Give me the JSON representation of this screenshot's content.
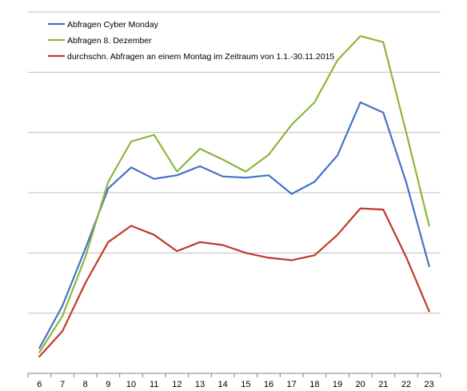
{
  "chart_data": {
    "type": "line",
    "title": "",
    "xlabel": "",
    "ylabel": "",
    "categories": [
      "6",
      "7",
      "8",
      "9",
      "10",
      "11",
      "12",
      "13",
      "14",
      "15",
      "16",
      "17",
      "18",
      "19",
      "20",
      "21",
      "22",
      "23"
    ],
    "ylim": [
      0,
      6
    ],
    "grid": true,
    "y_axis_labels": false,
    "legend_position": "top-left",
    "series": [
      {
        "name": "Abfragen Cyber Monday",
        "color": "#4472C4",
        "values": [
          0.42,
          1.12,
          2.07,
          3.07,
          3.42,
          3.23,
          3.29,
          3.44,
          3.27,
          3.25,
          3.29,
          2.98,
          3.18,
          3.62,
          4.5,
          4.33,
          3.17,
          1.78
        ]
      },
      {
        "name": "Abfragen 8. Dezember",
        "color": "#8EB53B",
        "values": [
          0.35,
          0.95,
          1.93,
          3.18,
          3.85,
          3.96,
          3.35,
          3.73,
          3.55,
          3.35,
          3.63,
          4.13,
          4.5,
          5.2,
          5.6,
          5.5,
          4.0,
          2.45
        ]
      },
      {
        "name": "durchschn. Abfragen an einem Montag im Zeitraum von 1.1.-30.11.2015",
        "color": "#C0392B",
        "values": [
          0.28,
          0.7,
          1.5,
          2.18,
          2.45,
          2.3,
          2.03,
          2.18,
          2.13,
          2.0,
          1.92,
          1.88,
          1.96,
          2.3,
          2.74,
          2.72,
          1.93,
          1.03
        ]
      }
    ]
  }
}
